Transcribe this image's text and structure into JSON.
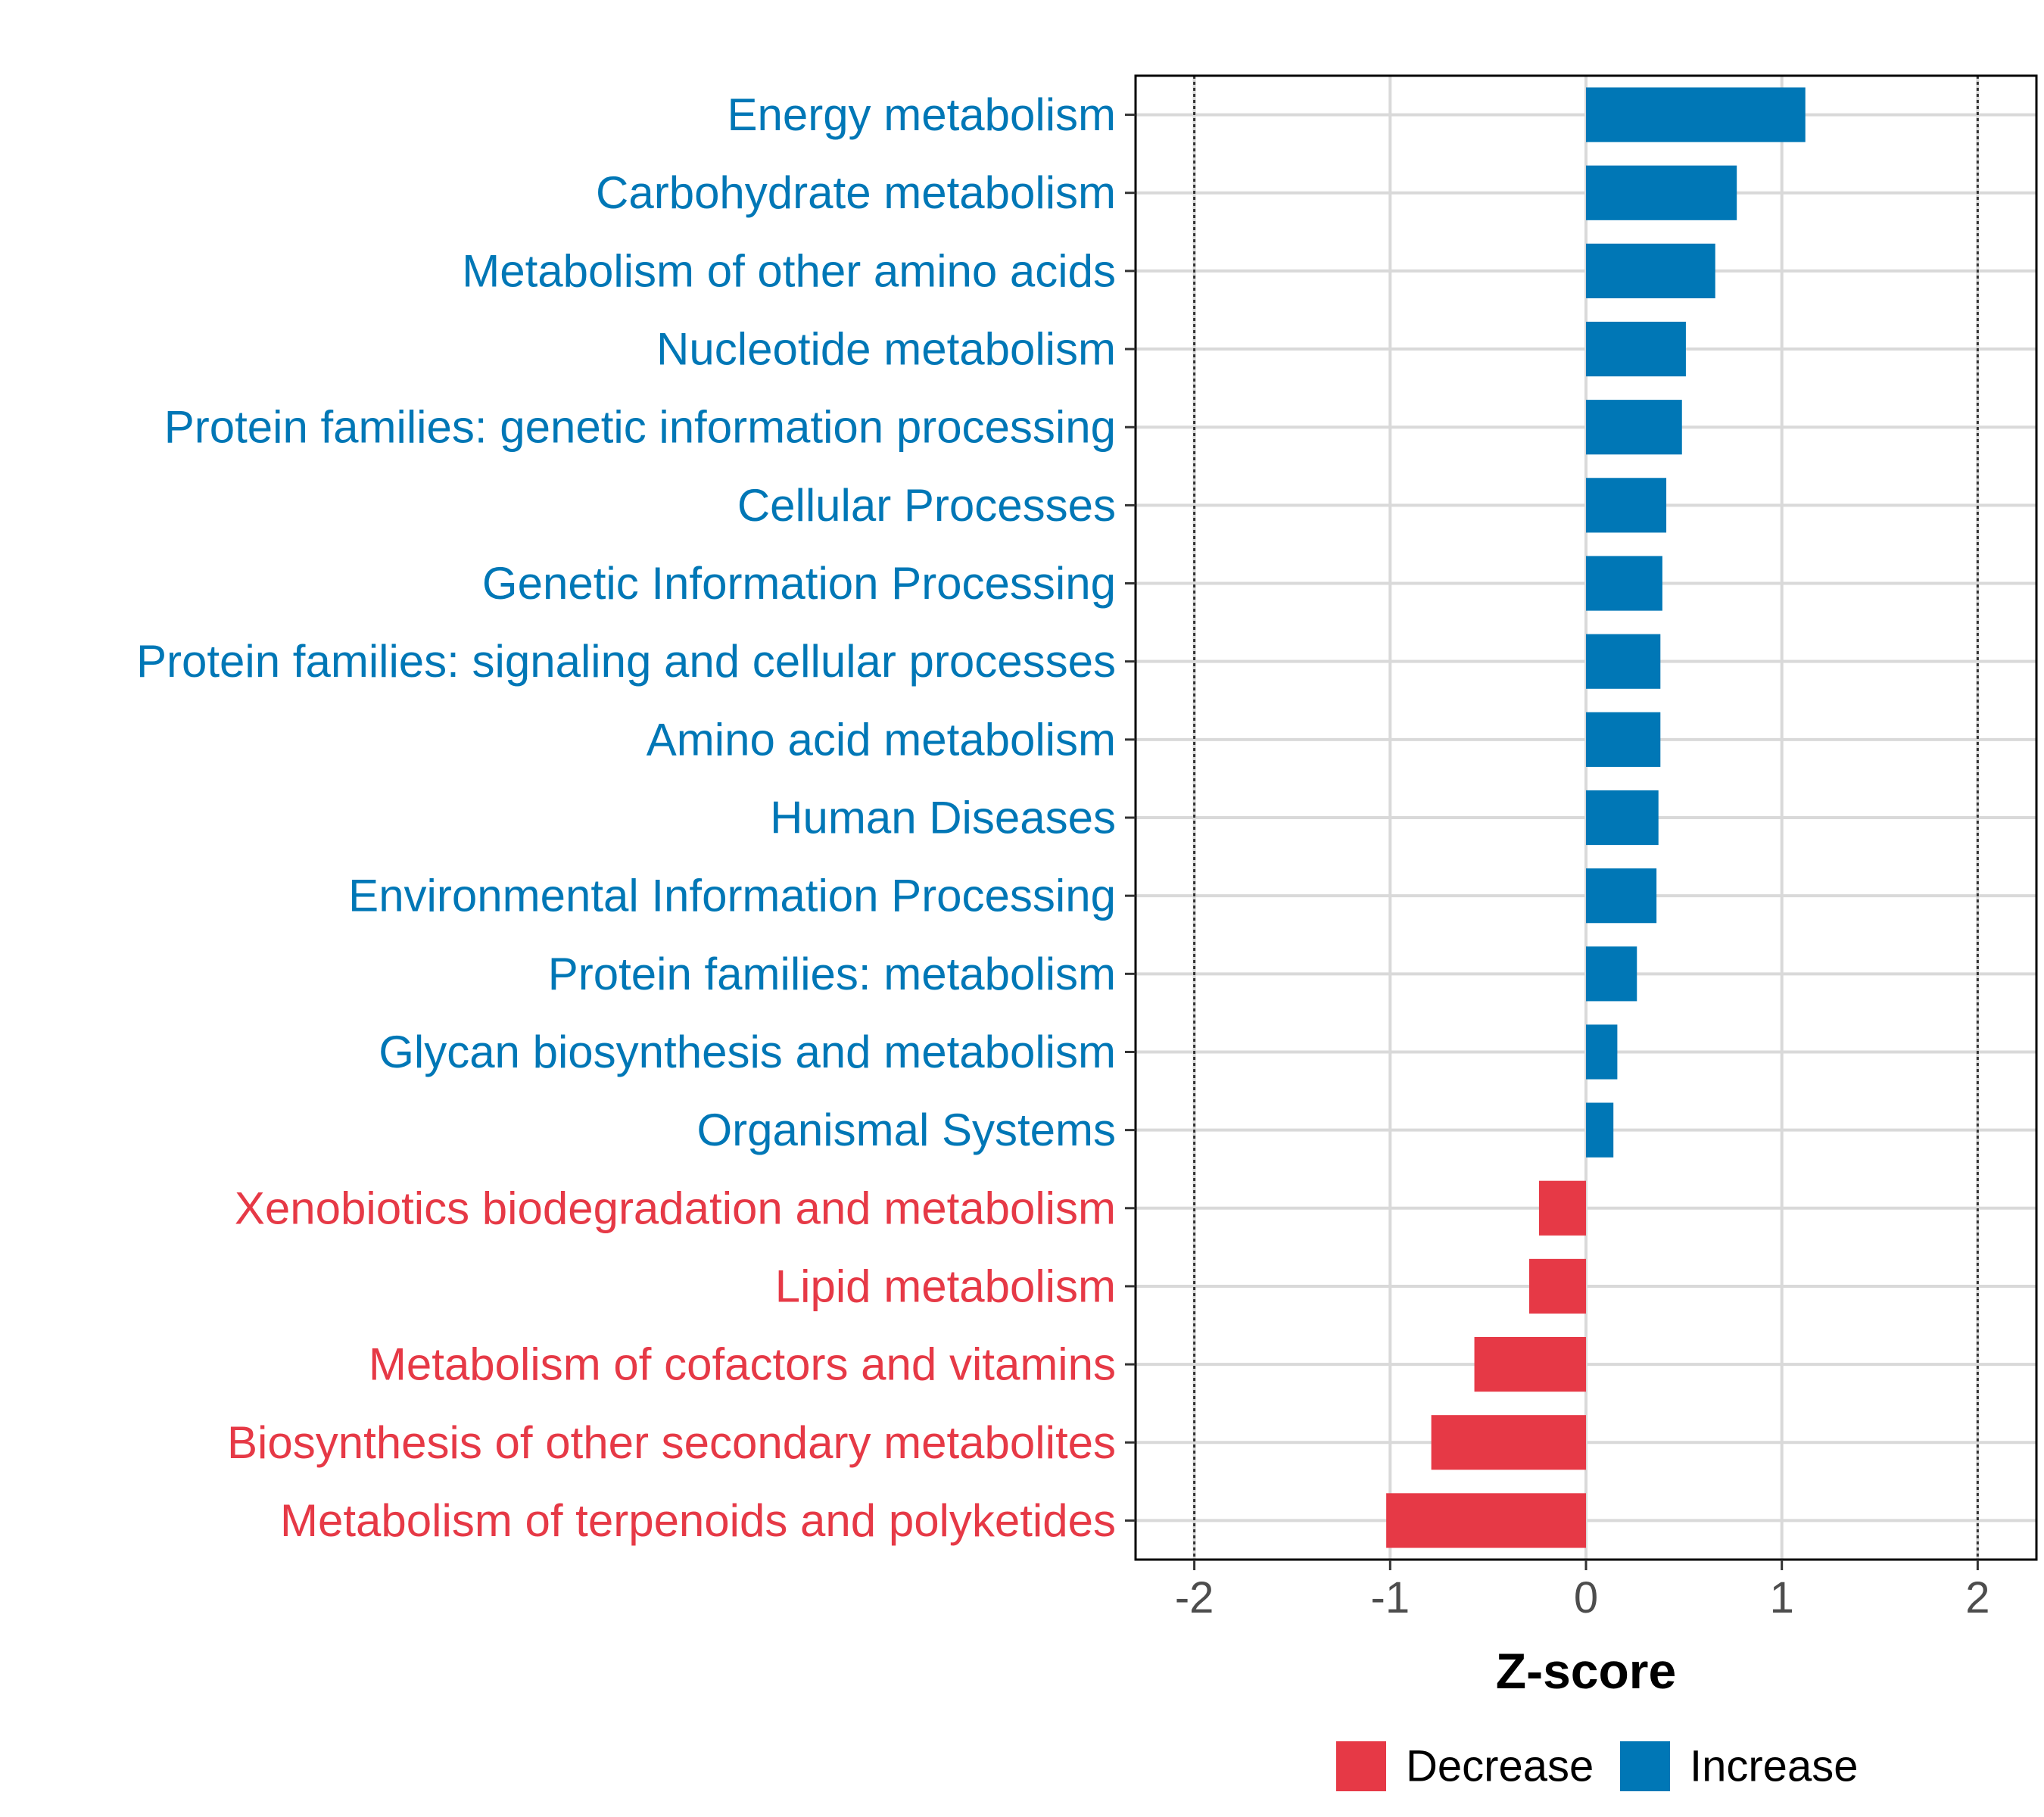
{
  "chart_data": {
    "type": "bar",
    "orientation": "horizontal",
    "xlabel": "Z-score",
    "xlim": [
      -2.3,
      2.3
    ],
    "xticks": [
      -2,
      -1,
      0,
      1,
      2
    ],
    "xtick_labels": [
      "-2",
      "-1",
      "0",
      "1",
      "2"
    ],
    "reference_lines": [
      -2,
      2
    ],
    "grid": true,
    "legend_position": "bottom",
    "categories": [
      "Energy metabolism",
      "Carbohydrate metabolism",
      "Metabolism of other amino acids",
      "Nucleotide metabolism",
      "Protein families: genetic information processing",
      "Cellular Processes",
      "Genetic Information Processing",
      "Protein families: signaling and cellular processes",
      "Amino acid metabolism",
      "Human Diseases",
      "Environmental Information Processing",
      "Protein families: metabolism",
      "Glycan biosynthesis and metabolism",
      "Organismal Systems",
      "Xenobiotics biodegradation and metabolism",
      "Lipid metabolism",
      "Metabolism of cofactors and vitamins",
      "Biosynthesis of other secondary metabolites",
      "Metabolism of terpenoids and polyketides"
    ],
    "values": [
      1.12,
      0.77,
      0.66,
      0.51,
      0.49,
      0.41,
      0.39,
      0.38,
      0.38,
      0.37,
      0.36,
      0.26,
      0.16,
      0.14,
      -0.24,
      -0.29,
      -0.57,
      -0.79,
      -1.02
    ],
    "groups": [
      "Increase",
      "Increase",
      "Increase",
      "Increase",
      "Increase",
      "Increase",
      "Increase",
      "Increase",
      "Increase",
      "Increase",
      "Increase",
      "Increase",
      "Increase",
      "Increase",
      "Decrease",
      "Decrease",
      "Decrease",
      "Decrease",
      "Decrease"
    ],
    "legend": [
      {
        "name": "Decrease",
        "color": "#e63946"
      },
      {
        "name": "Increase",
        "color": "#0077b6"
      }
    ]
  }
}
